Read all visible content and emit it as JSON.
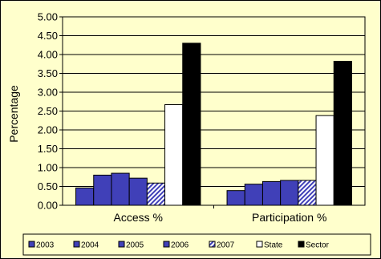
{
  "chart_data": {
    "type": "bar",
    "title": "",
    "xlabel": "",
    "ylabel": "Percentage",
    "ylim": [
      0,
      5
    ],
    "y_ticks": [
      "0.00",
      "0.50",
      "1.00",
      "1.50",
      "2.00",
      "2.50",
      "3.00",
      "3.50",
      "4.00",
      "4.50",
      "5.00"
    ],
    "grid": "horizontal",
    "legend_position": "bottom",
    "categories": [
      "Access %",
      "Participation %"
    ],
    "series": [
      {
        "name": "2003",
        "values": [
          0.46,
          0.39
        ],
        "fill": "#4040b8",
        "pattern": "solid"
      },
      {
        "name": "2004",
        "values": [
          0.8,
          0.56
        ],
        "fill": "#4040b8",
        "pattern": "solid"
      },
      {
        "name": "2005",
        "values": [
          0.85,
          0.63
        ],
        "fill": "#4040b8",
        "pattern": "solid"
      },
      {
        "name": "2006",
        "values": [
          0.72,
          0.66
        ],
        "fill": "#4040b8",
        "pattern": "solid"
      },
      {
        "name": "2007",
        "values": [
          0.59,
          0.66
        ],
        "fill": "#4040b8",
        "pattern": "hatched"
      },
      {
        "name": "State",
        "values": [
          2.67,
          2.38
        ],
        "fill": "#ffffff",
        "pattern": "solid"
      },
      {
        "name": "Sector",
        "values": [
          4.3,
          3.82
        ],
        "fill": "#000000",
        "pattern": "solid"
      }
    ],
    "colors": {
      "background": "#ffffcc",
      "plot_background": "#ffffcc",
      "bar_blue": "#4040b8",
      "gridline": "#000000",
      "border": "#000000"
    }
  }
}
